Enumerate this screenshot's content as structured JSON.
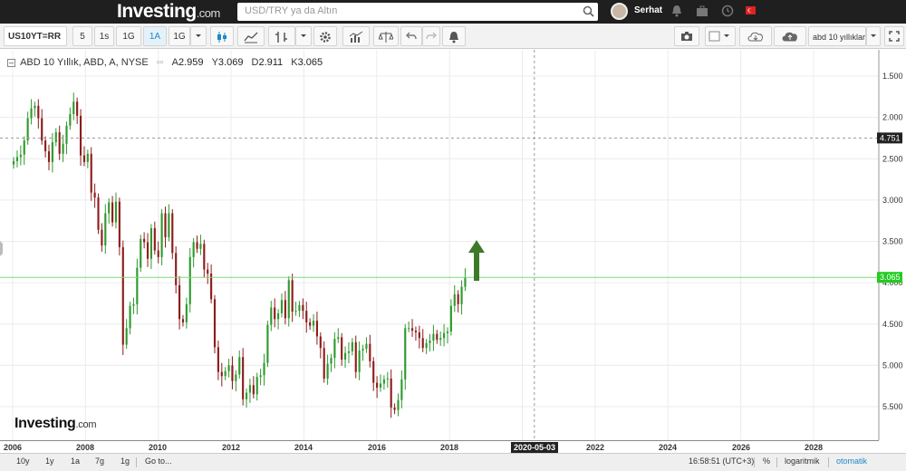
{
  "header": {
    "logo_main": "Investing",
    "logo_suffix": ".com",
    "search_placeholder": "USD/TRY ya da Altın",
    "username": "Serhat"
  },
  "toolbar": {
    "symbol": "US10YT=RR",
    "intervals": [
      "5",
      "1s",
      "1G",
      "1A",
      "1G"
    ],
    "active_interval": "1A",
    "search_value": "abd 10 yıllıklar"
  },
  "legend": {
    "title": "ABD 10 Yıllık, ABD, A, NYSE",
    "open_label": "A",
    "open": "2.959",
    "high_label": "Y",
    "high": "3.069",
    "low_label": "D",
    "low": "2.911",
    "close_label": "K",
    "close": "3.065"
  },
  "watermark": {
    "main": "Investing",
    "suffix": ".com"
  },
  "x_axis": {
    "labels": [
      "2006",
      "2008",
      "2010",
      "2012",
      "2014",
      "2016",
      "2018",
      "2022",
      "2024",
      "2026",
      "2028"
    ],
    "crosshair_label": "2020-05-03"
  },
  "y_axis": {
    "labels": [
      "5.500",
      "5.000",
      "4.500",
      "4.000",
      "3.500",
      "3.000",
      "2.500",
      "2.000",
      "1.500"
    ],
    "crosshair_label": "4.751",
    "last_price_label": "3.065"
  },
  "bottom": {
    "ranges": [
      "10y",
      "1y",
      "1a",
      "7g",
      "1g"
    ],
    "goto": "Go to...",
    "time": "16:58:51 (UTC+3)",
    "percent": "%",
    "log": "logaritmik",
    "auto": "otomatik"
  },
  "colors": {
    "up": "#2e9a2e",
    "down": "#8e1c1c",
    "last_line": "#7fd87f",
    "last_badge": "#22cc22",
    "arrow": "#3c7a2a",
    "auto_link": "#1e88c8"
  },
  "chart_data": {
    "type": "candlestick",
    "title": "ABD 10 Yıllık, ABD, A, NYSE",
    "xlabel": "",
    "ylabel": "",
    "xlim": [
      2006,
      2029.5
    ],
    "ylim": [
      1.2,
      5.7
    ],
    "yticks": [
      1.5,
      2.0,
      2.5,
      3.0,
      3.5,
      4.0,
      4.5,
      5.0,
      5.5
    ],
    "last_price": 3.065,
    "crosshair": {
      "x_label": "2020-05-03",
      "y": 4.751
    },
    "ohlc_last": {
      "open": 2.959,
      "high": 3.069,
      "low": 2.911,
      "close": 3.065
    },
    "closes": [
      4.47,
      4.52,
      4.55,
      4.72,
      4.99,
      5.11,
      5.14,
      4.99,
      4.72,
      4.59,
      4.46,
      4.7,
      4.82,
      4.56,
      4.68,
      4.9,
      5.04,
      5.19,
      5.02,
      4.54,
      4.46,
      4.56,
      4.09,
      4.03,
      3.64,
      3.45,
      3.84,
      3.97,
      3.73,
      3.98,
      3.43,
      2.25,
      2.45,
      2.72,
      2.74,
      3.18,
      3.53,
      3.49,
      3.29,
      3.66,
      3.39,
      3.31,
      3.84,
      3.55,
      3.84,
      3.36,
      2.97,
      2.56,
      2.52,
      2.74,
      3.31,
      3.49,
      3.41,
      3.47,
      3.16,
      3.11,
      2.8,
      2.22,
      1.92,
      1.87,
      1.93,
      2.0,
      1.81,
      1.89,
      2.1,
      1.59,
      1.67,
      1.76,
      1.65,
      1.86,
      1.88,
      2.03,
      2.49,
      2.7,
      2.56,
      2.63,
      2.79,
      2.57,
      3.03,
      2.65,
      2.66,
      2.73,
      2.66,
      2.52,
      2.48,
      2.54,
      2.35,
      2.21,
      1.84,
      2.02,
      2.09,
      2.32,
      2.34,
      2.07,
      2.15,
      2.17,
      2.28,
      1.92,
      2.18,
      2.2,
      2.26,
      2.05,
      1.79,
      1.73,
      1.78,
      1.83,
      1.84,
      1.49,
      1.46,
      1.58,
      1.83,
      2.45,
      2.45,
      2.42,
      2.4,
      2.33,
      2.21,
      2.27,
      2.3,
      2.38,
      2.31,
      2.33,
      2.39,
      2.41,
      2.72,
      2.86,
      2.74,
      2.95,
      3.065
    ]
  }
}
